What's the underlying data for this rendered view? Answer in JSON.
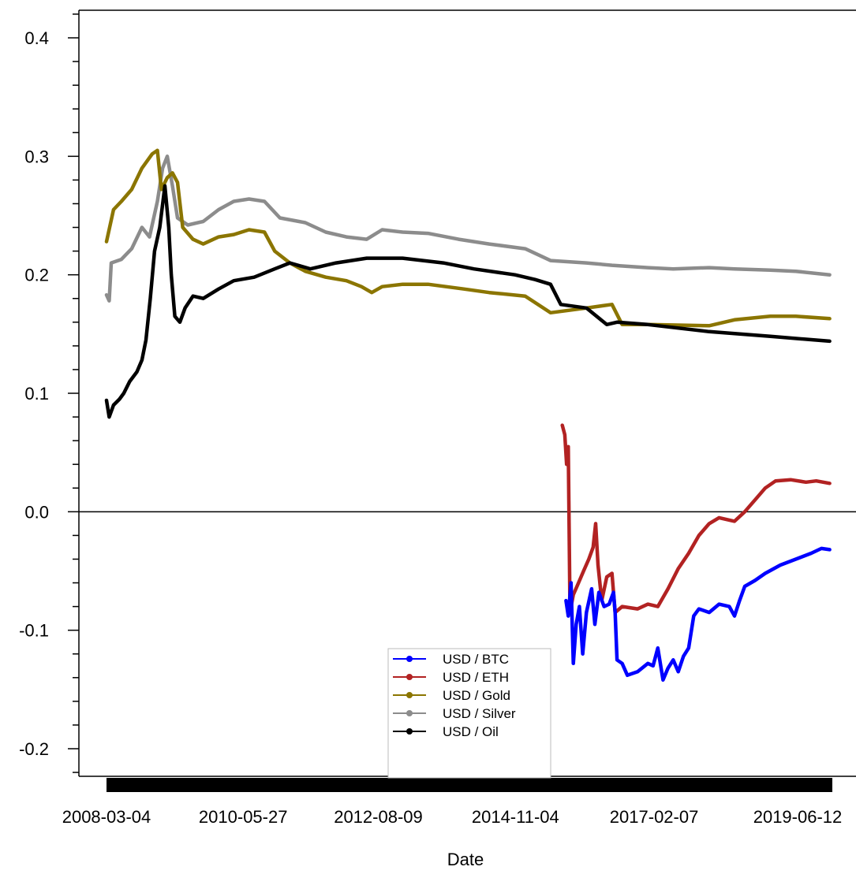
{
  "chart_data": {
    "type": "line",
    "title": "",
    "xlabel": "Date",
    "ylabel": "",
    "x_ticks": [
      "2008-03-04",
      "2010-05-27",
      "2012-08-09",
      "2014-11-04",
      "2017-02-07",
      "2019-06-12"
    ],
    "y_ticks": [
      "0.4",
      "0.3",
      "0.2",
      "0.1",
      "0.0",
      "-0.1",
      "-0.2"
    ],
    "y_tick_values": [
      0.4,
      0.3,
      0.2,
      0.1,
      0.0,
      -0.1,
      -0.2
    ],
    "ylim": [
      -0.225,
      0.425
    ],
    "xlim": [
      "2007-12-01",
      "2020-01-01"
    ],
    "zero_line": 0.0,
    "grid": false,
    "legend_position": "bottom-center",
    "series": [
      {
        "name": "USD / BTC",
        "color": "#0000ff",
        "points": [
          [
            "2015-09-01",
            -0.075
          ],
          [
            "2015-09-15",
            -0.088
          ],
          [
            "2015-10-01",
            -0.06
          ],
          [
            "2015-10-15",
            -0.128
          ],
          [
            "2015-11-01",
            -0.095
          ],
          [
            "2015-11-20",
            -0.08
          ],
          [
            "2015-12-10",
            -0.12
          ],
          [
            "2016-01-01",
            -0.085
          ],
          [
            "2016-02-01",
            -0.065
          ],
          [
            "2016-02-20",
            -0.095
          ],
          [
            "2016-03-15",
            -0.068
          ],
          [
            "2016-04-15",
            -0.08
          ],
          [
            "2016-05-15",
            -0.078
          ],
          [
            "2016-06-10",
            -0.068
          ],
          [
            "2016-06-20",
            -0.085
          ],
          [
            "2016-07-01",
            -0.125
          ],
          [
            "2016-08-01",
            -0.128
          ],
          [
            "2016-09-01",
            -0.138
          ],
          [
            "2016-11-01",
            -0.135
          ],
          [
            "2017-01-01",
            -0.128
          ],
          [
            "2017-02-01",
            -0.13
          ],
          [
            "2017-03-01",
            -0.115
          ],
          [
            "2017-04-01",
            -0.142
          ],
          [
            "2017-05-01",
            -0.132
          ],
          [
            "2017-06-01",
            -0.125
          ],
          [
            "2017-07-01",
            -0.135
          ],
          [
            "2017-08-01",
            -0.122
          ],
          [
            "2017-09-01",
            -0.115
          ],
          [
            "2017-10-01",
            -0.088
          ],
          [
            "2017-11-01",
            -0.082
          ],
          [
            "2018-01-01",
            -0.085
          ],
          [
            "2018-03-01",
            -0.078
          ],
          [
            "2018-05-01",
            -0.08
          ],
          [
            "2018-06-01",
            -0.088
          ],
          [
            "2018-07-01",
            -0.075
          ],
          [
            "2018-08-01",
            -0.063
          ],
          [
            "2018-10-01",
            -0.058
          ],
          [
            "2018-12-01",
            -0.052
          ],
          [
            "2019-03-01",
            -0.045
          ],
          [
            "2019-06-01",
            -0.04
          ],
          [
            "2019-09-01",
            -0.035
          ],
          [
            "2019-11-01",
            -0.031
          ],
          [
            "2019-12-20",
            -0.032
          ]
        ]
      },
      {
        "name": "USD / ETH",
        "color": "#b22222",
        "points": [
          [
            "2015-08-10",
            0.073
          ],
          [
            "2015-08-25",
            0.065
          ],
          [
            "2015-09-05",
            0.04
          ],
          [
            "2015-09-15",
            0.055
          ],
          [
            "2015-09-25",
            -0.085
          ],
          [
            "2015-10-15",
            -0.07
          ],
          [
            "2015-11-15",
            -0.06
          ],
          [
            "2015-12-15",
            -0.05
          ],
          [
            "2016-01-15",
            -0.04
          ],
          [
            "2016-02-10",
            -0.03
          ],
          [
            "2016-02-25",
            -0.01
          ],
          [
            "2016-03-10",
            -0.045
          ],
          [
            "2016-04-01",
            -0.075
          ],
          [
            "2016-05-01",
            -0.055
          ],
          [
            "2016-06-01",
            -0.052
          ],
          [
            "2016-06-20",
            -0.085
          ],
          [
            "2016-08-01",
            -0.08
          ],
          [
            "2016-11-01",
            -0.082
          ],
          [
            "2017-01-01",
            -0.078
          ],
          [
            "2017-03-01",
            -0.08
          ],
          [
            "2017-05-01",
            -0.065
          ],
          [
            "2017-07-01",
            -0.048
          ],
          [
            "2017-09-01",
            -0.035
          ],
          [
            "2017-11-01",
            -0.02
          ],
          [
            "2018-01-01",
            -0.01
          ],
          [
            "2018-03-01",
            -0.005
          ],
          [
            "2018-06-01",
            -0.008
          ],
          [
            "2018-08-01",
            0.0
          ],
          [
            "2018-10-01",
            0.01
          ],
          [
            "2018-12-01",
            0.02
          ],
          [
            "2019-02-01",
            0.026
          ],
          [
            "2019-05-01",
            0.027
          ],
          [
            "2019-08-01",
            0.025
          ],
          [
            "2019-10-01",
            0.026
          ],
          [
            "2019-12-20",
            0.024
          ]
        ]
      },
      {
        "name": "USD / Gold",
        "color": "#8b7500",
        "points": [
          [
            "2008-03-04",
            0.228
          ],
          [
            "2008-04-15",
            0.255
          ],
          [
            "2008-06-01",
            0.262
          ],
          [
            "2008-08-01",
            0.272
          ],
          [
            "2008-10-01",
            0.29
          ],
          [
            "2008-12-01",
            0.302
          ],
          [
            "2009-01-01",
            0.305
          ],
          [
            "2009-01-25",
            0.272
          ],
          [
            "2009-03-01",
            0.282
          ],
          [
            "2009-04-01",
            0.286
          ],
          [
            "2009-05-01",
            0.278
          ],
          [
            "2009-06-01",
            0.24
          ],
          [
            "2009-08-01",
            0.23
          ],
          [
            "2009-10-01",
            0.226
          ],
          [
            "2010-01-01",
            0.232
          ],
          [
            "2010-04-01",
            0.234
          ],
          [
            "2010-07-01",
            0.238
          ],
          [
            "2010-10-01",
            0.236
          ],
          [
            "2010-12-01",
            0.22
          ],
          [
            "2011-03-01",
            0.21
          ],
          [
            "2011-06-01",
            0.203
          ],
          [
            "2011-10-01",
            0.198
          ],
          [
            "2012-02-01",
            0.195
          ],
          [
            "2012-05-01",
            0.19
          ],
          [
            "2012-07-01",
            0.185
          ],
          [
            "2012-09-01",
            0.19
          ],
          [
            "2013-01-01",
            0.192
          ],
          [
            "2013-06-01",
            0.192
          ],
          [
            "2014-01-01",
            0.188
          ],
          [
            "2014-06-01",
            0.185
          ],
          [
            "2015-01-01",
            0.182
          ],
          [
            "2015-06-01",
            0.168
          ],
          [
            "2016-01-01",
            0.172
          ],
          [
            "2016-06-01",
            0.175
          ],
          [
            "2016-08-01",
            0.158
          ],
          [
            "2017-01-01",
            0.158
          ],
          [
            "2018-01-01",
            0.157
          ],
          [
            "2018-06-01",
            0.162
          ],
          [
            "2019-01-01",
            0.165
          ],
          [
            "2019-06-01",
            0.165
          ],
          [
            "2019-12-20",
            0.163
          ]
        ]
      },
      {
        "name": "USD / Silver",
        "color": "#8c8c8c",
        "points": [
          [
            "2008-03-04",
            0.183
          ],
          [
            "2008-03-20",
            0.178
          ],
          [
            "2008-04-01",
            0.21
          ],
          [
            "2008-06-01",
            0.213
          ],
          [
            "2008-08-01",
            0.222
          ],
          [
            "2008-10-01",
            0.24
          ],
          [
            "2008-11-15",
            0.232
          ],
          [
            "2009-01-01",
            0.262
          ],
          [
            "2009-02-01",
            0.29
          ],
          [
            "2009-03-01",
            0.3
          ],
          [
            "2009-04-01",
            0.275
          ],
          [
            "2009-05-01",
            0.248
          ],
          [
            "2009-07-01",
            0.242
          ],
          [
            "2009-10-01",
            0.245
          ],
          [
            "2010-01-01",
            0.255
          ],
          [
            "2010-04-01",
            0.262
          ],
          [
            "2010-07-01",
            0.264
          ],
          [
            "2010-10-01",
            0.262
          ],
          [
            "2011-01-01",
            0.248
          ],
          [
            "2011-06-01",
            0.244
          ],
          [
            "2011-10-01",
            0.236
          ],
          [
            "2012-02-01",
            0.232
          ],
          [
            "2012-06-01",
            0.23
          ],
          [
            "2012-09-01",
            0.238
          ],
          [
            "2013-01-01",
            0.236
          ],
          [
            "2013-06-01",
            0.235
          ],
          [
            "2013-12-01",
            0.23
          ],
          [
            "2014-06-01",
            0.226
          ],
          [
            "2015-01-01",
            0.222
          ],
          [
            "2015-06-01",
            0.212
          ],
          [
            "2016-01-01",
            0.21
          ],
          [
            "2016-06-01",
            0.208
          ],
          [
            "2017-01-01",
            0.206
          ],
          [
            "2017-06-01",
            0.205
          ],
          [
            "2018-01-01",
            0.206
          ],
          [
            "2018-06-01",
            0.205
          ],
          [
            "2019-01-01",
            0.204
          ],
          [
            "2019-06-01",
            0.203
          ],
          [
            "2019-12-20",
            0.2
          ]
        ]
      },
      {
        "name": "USD / Oil",
        "color": "#000000",
        "points": [
          [
            "2008-03-04",
            0.094
          ],
          [
            "2008-03-20",
            0.08
          ],
          [
            "2008-04-15",
            0.09
          ],
          [
            "2008-05-20",
            0.095
          ],
          [
            "2008-06-15",
            0.1
          ],
          [
            "2008-07-20",
            0.11
          ],
          [
            "2008-09-01",
            0.118
          ],
          [
            "2008-10-01",
            0.128
          ],
          [
            "2008-10-25",
            0.145
          ],
          [
            "2008-11-20",
            0.18
          ],
          [
            "2008-12-15",
            0.22
          ],
          [
            "2009-01-15",
            0.24
          ],
          [
            "2009-02-15",
            0.275
          ],
          [
            "2009-03-10",
            0.24
          ],
          [
            "2009-03-25",
            0.2
          ],
          [
            "2009-04-15",
            0.165
          ],
          [
            "2009-05-15",
            0.16
          ],
          [
            "2009-06-15",
            0.172
          ],
          [
            "2009-08-01",
            0.182
          ],
          [
            "2009-10-01",
            0.18
          ],
          [
            "2010-01-01",
            0.188
          ],
          [
            "2010-04-01",
            0.195
          ],
          [
            "2010-08-01",
            0.198
          ],
          [
            "2010-12-01",
            0.205
          ],
          [
            "2011-03-01",
            0.21
          ],
          [
            "2011-07-01",
            0.205
          ],
          [
            "2011-12-01",
            0.21
          ],
          [
            "2012-06-01",
            0.214
          ],
          [
            "2013-01-01",
            0.214
          ],
          [
            "2013-09-01",
            0.21
          ],
          [
            "2014-03-01",
            0.205
          ],
          [
            "2014-11-01",
            0.2
          ],
          [
            "2015-03-01",
            0.196
          ],
          [
            "2015-06-01",
            0.192
          ],
          [
            "2015-08-01",
            0.175
          ],
          [
            "2016-01-01",
            0.172
          ],
          [
            "2016-05-01",
            0.158
          ],
          [
            "2016-07-01",
            0.16
          ],
          [
            "2017-01-01",
            0.158
          ],
          [
            "2018-01-01",
            0.152
          ],
          [
            "2019-01-01",
            0.148
          ],
          [
            "2019-12-20",
            0.144
          ]
        ]
      }
    ]
  }
}
